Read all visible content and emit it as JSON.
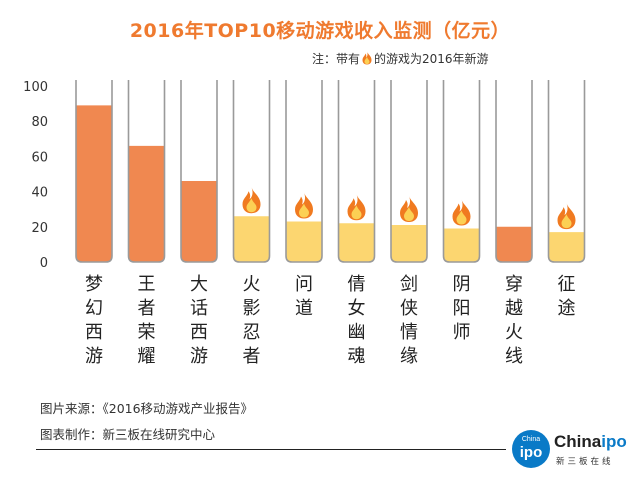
{
  "title": "2016年TOP10移动游戏收入监测（亿元）",
  "note": {
    "prefix": "注：带有",
    "suffix": "的游戏为2016年新游",
    "icon": "flame-icon"
  },
  "footer": {
    "source": "图片来源：《2016移动游戏产业报告》",
    "credit": "图表制作：新三板在线研究中心"
  },
  "logo": {
    "circle_top": "China",
    "circle_main": "ipo",
    "word_main": "China",
    "word_accent": "ipo",
    "sub": "新三板在线"
  },
  "colors": {
    "title": "#ef7a2f",
    "old_game_bar": "#f08850",
    "new_game_bar": "#fcd670",
    "tube_outline": "#9a9a9a",
    "flame_outer": "#f07a20",
    "flame_inner": "#fcd054",
    "brand_blue": "#0a7ac7"
  },
  "chart_data": {
    "type": "bar",
    "title": "2016年TOP10移动游戏收入监测（亿元）",
    "xlabel": "",
    "ylabel": "",
    "ylim": [
      0,
      100
    ],
    "yticks": [
      0,
      20,
      40,
      60,
      80,
      100
    ],
    "grid": false,
    "categories": [
      "梦幻西游",
      "王者荣耀",
      "大话西游",
      "火影忍者",
      "问道",
      "倩女幽魂",
      "剑侠情缘",
      "阴阳师",
      "穿越火线",
      "征途"
    ],
    "values": [
      89,
      66,
      46,
      26,
      23,
      22,
      21,
      19,
      20,
      17
    ],
    "new_game": [
      false,
      false,
      false,
      true,
      true,
      true,
      true,
      true,
      false,
      true
    ]
  }
}
